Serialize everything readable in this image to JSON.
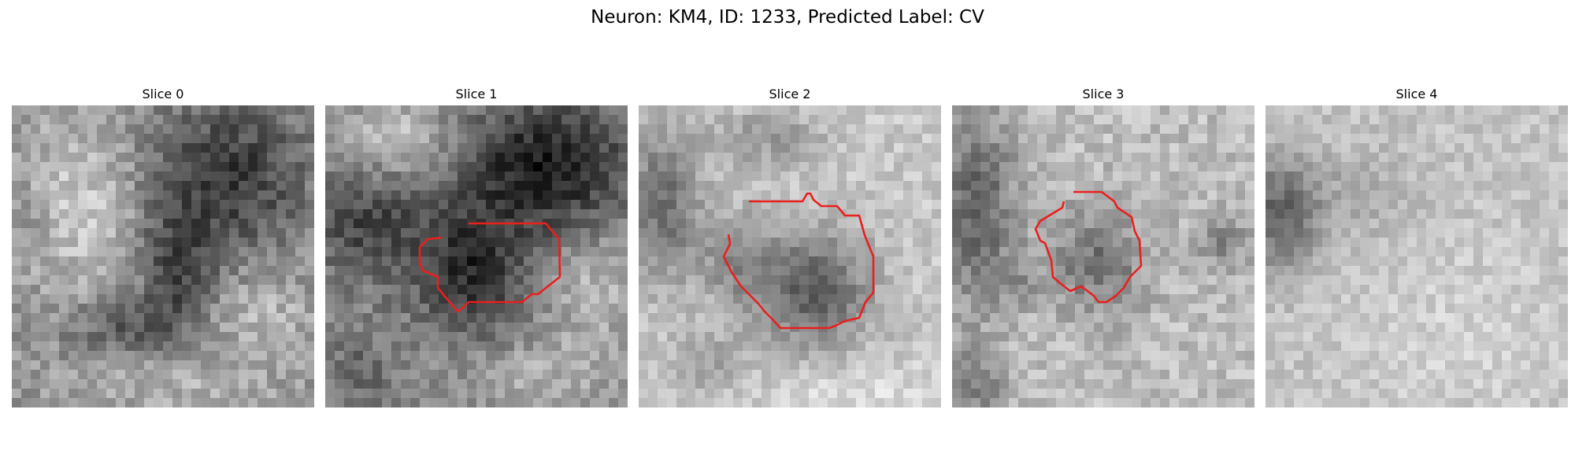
{
  "figure": {
    "title": "Neuron: KM4, ID: 1233, Predicted Label: CV"
  },
  "colors": {
    "contour": "#e8201e",
    "colormap": "gray"
  },
  "slices": [
    {
      "title": "Slice 0",
      "has_contour": false
    },
    {
      "title": "Slice 1",
      "has_contour": true
    },
    {
      "title": "Slice 2",
      "has_contour": true
    },
    {
      "title": "Slice 3",
      "has_contour": true
    },
    {
      "title": "Slice 4",
      "has_contour": false
    }
  ]
}
